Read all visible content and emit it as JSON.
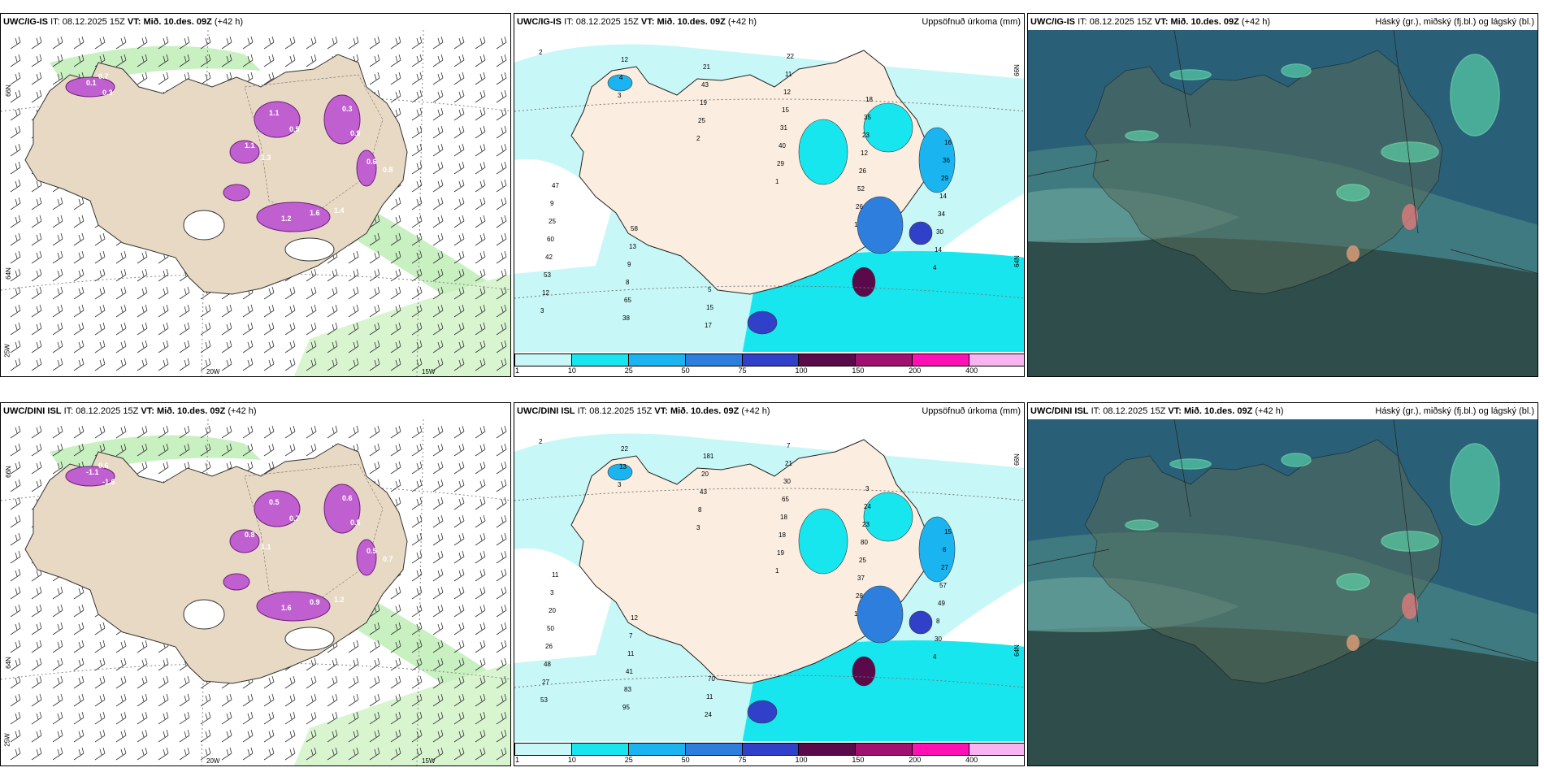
{
  "panels": {
    "p1": {
      "model": "UWC/IG-IS",
      "it": "08.12.2025 15Z",
      "vt": "Mið. 10.des. 09Z",
      "lead": "(+42 h)",
      "right": "",
      "lats": [
        "66N",
        "64N"
      ],
      "lons": [
        "20W",
        "15W"
      ],
      "lon_left": "25W"
    },
    "p2": {
      "model": "UWC/IG-IS",
      "it": "08.12.2025 15Z",
      "vt": "Mið. 10.des. 09Z",
      "lead": "(+42 h)",
      "right": "Uppsöfnuð úrkoma (mm)",
      "lats": [
        "66N",
        "64N"
      ]
    },
    "p3": {
      "model": "UWC/IG-IS",
      "it": "08.12.2025 15Z",
      "vt": "Mið. 10.des. 09Z",
      "lead": "(+42 h)",
      "right": "Háský (gr.), miðský (fj.bl.) og lágský (bl.)"
    },
    "p4": {
      "model": "UWC/DINI ISL",
      "it": "08.12.2025 15Z",
      "vt": "Mið. 10.des. 09Z",
      "lead": "(+42 h)",
      "right": "",
      "lats": [
        "66N",
        "64N"
      ],
      "lons": [
        "20W",
        "15W"
      ],
      "lon_left": "25W"
    },
    "p5": {
      "model": "UWC/DINI ISL",
      "it": "08.12.2025 15Z",
      "vt": "Mið. 10.des. 09Z",
      "lead": "(+42 h)",
      "right": "Uppsöfnuð úrkoma (mm)",
      "lats": [
        "66N",
        "64N"
      ]
    },
    "p6": {
      "model": "UWC/DINI ISL",
      "it": "08.12.2025 15Z",
      "vt": "Mið. 10.des. 09Z",
      "lead": "(+42 h)",
      "right": "Háský (gr.), miðský (fj.bl.) og lágský (bl.)"
    }
  },
  "labels": {
    "it_prefix": "IT:",
    "vt_prefix": "VT:"
  },
  "colorbar": {
    "ticks": [
      "1",
      "10",
      "25",
      "50",
      "75",
      "100",
      "150",
      "200",
      "400"
    ],
    "colors": [
      "#c8f7f7",
      "#18e6ee",
      "#1ab4f0",
      "#2e7fdd",
      "#3040c8",
      "#5a0a4a",
      "#a0106e",
      "#ff10b4",
      "#f7b4f0"
    ]
  },
  "precip_values": {
    "p2": [
      "2",
      "3",
      "2",
      "1",
      "1",
      "4",
      "3",
      "4",
      "25",
      "29",
      "26",
      "14",
      "12",
      "12",
      "19",
      "40",
      "52",
      "30",
      "53",
      "38",
      "43",
      "31",
      "26",
      "34",
      "42",
      "65",
      "21",
      "15",
      "12",
      "14",
      "60",
      "8",
      "17",
      "12",
      "23",
      "29",
      "25",
      "9",
      "15",
      "11",
      "35",
      "36",
      "9",
      "13",
      "5",
      "22",
      "18",
      "16",
      "47",
      "58"
    ],
    "p5": [
      "2",
      "3",
      "3",
      "1",
      "1",
      "4",
      "53",
      "13",
      "8",
      "19",
      "28",
      "30",
      "27",
      "22",
      "43",
      "18",
      "37",
      "8",
      "48",
      "95",
      "20",
      "18",
      "25",
      "49",
      "26",
      "83",
      "181",
      "65",
      "80",
      "57",
      "50",
      "41",
      "24",
      "30",
      "23",
      "27",
      "20",
      "11",
      "11",
      "21",
      "24",
      "6",
      "3",
      "7",
      "70",
      "7",
      "3",
      "15",
      "11",
      "12"
    ]
  },
  "temp_values": {
    "p1": [
      "0.1",
      "0.3",
      "1.1",
      "0.5",
      "0.3",
      "0.9",
      "1.1",
      "1.2",
      "1.6",
      "1.4",
      "0.6",
      "0.8",
      "0.7",
      "1.3"
    ],
    "p4": [
      "-1.1",
      "-1.6",
      "0.5",
      "0.7",
      "0.6",
      "0.5",
      "0.8",
      "1.6",
      "0.9",
      "1.2",
      "0.5",
      "0.7",
      "0.6",
      "1.1"
    ]
  }
}
